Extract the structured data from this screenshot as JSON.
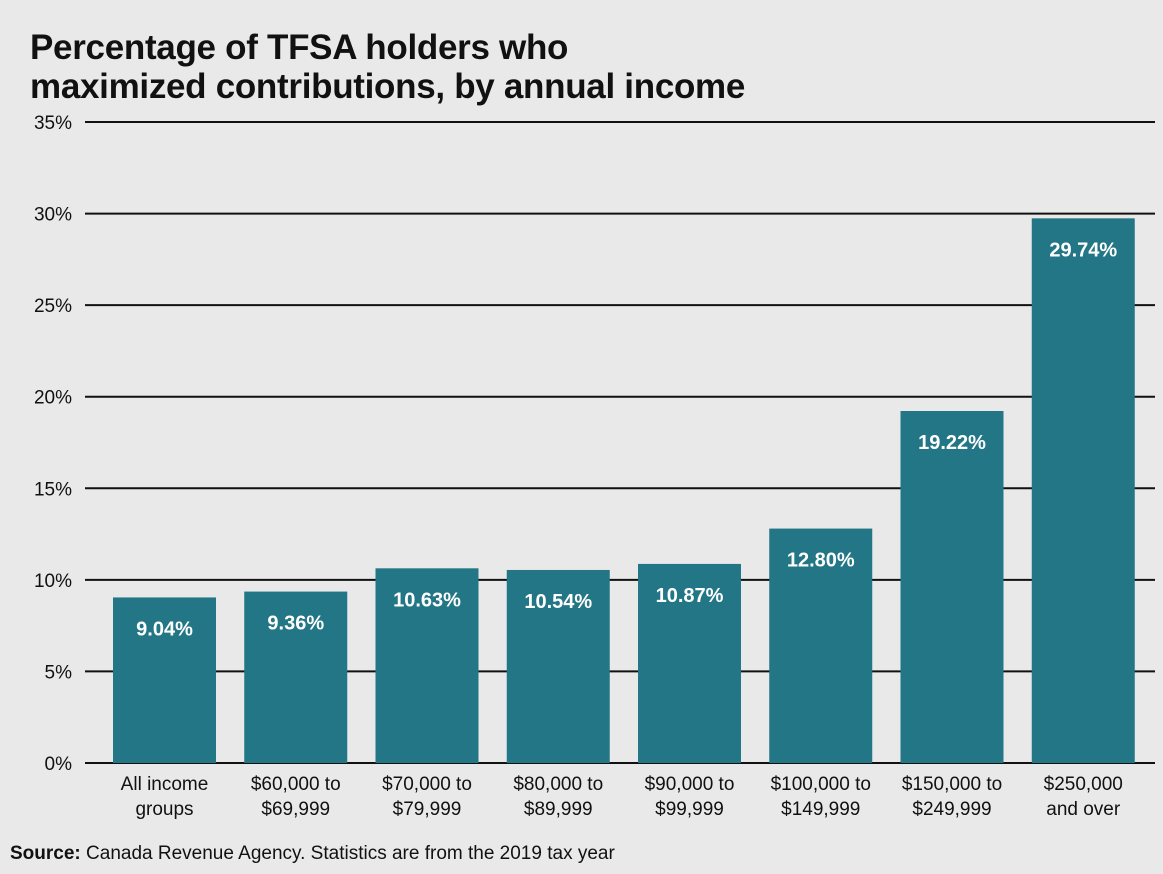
{
  "chart_data": {
    "type": "bar",
    "title_lines": [
      "Percentage of TFSA holders who",
      "maximized contributions, by annual income"
    ],
    "categories": [
      [
        "All income",
        "groups"
      ],
      [
        "$60,000 to",
        "$69,999"
      ],
      [
        "$70,000 to",
        "$79,999"
      ],
      [
        "$80,000 to",
        "$89,999"
      ],
      [
        "$90,000 to",
        "$99,999"
      ],
      [
        "$100,000 to",
        "$149,999"
      ],
      [
        "$150,000 to",
        "$249,999"
      ],
      [
        "$250,000",
        "and over"
      ]
    ],
    "values": [
      9.04,
      9.36,
      10.63,
      10.54,
      10.87,
      12.8,
      19.22,
      29.74
    ],
    "value_labels": [
      "9.04%",
      "9.36%",
      "10.63%",
      "10.54%",
      "10.87%",
      "12.80%",
      "19.22%",
      "29.74%"
    ],
    "ylim": [
      0,
      35
    ],
    "yticks": [
      0,
      5,
      10,
      15,
      20,
      25,
      30,
      35
    ],
    "ytick_labels": [
      "0%",
      "5%",
      "10%",
      "15%",
      "20%",
      "25%",
      "30%",
      "35%"
    ],
    "xlabel": "",
    "ylabel": "",
    "grid": true,
    "bar_color": "#237685",
    "label_color": "#ffffff"
  },
  "source": {
    "label": "Source:",
    "text": " Canada Revenue Agency. Statistics are from the 2019 tax year"
  }
}
